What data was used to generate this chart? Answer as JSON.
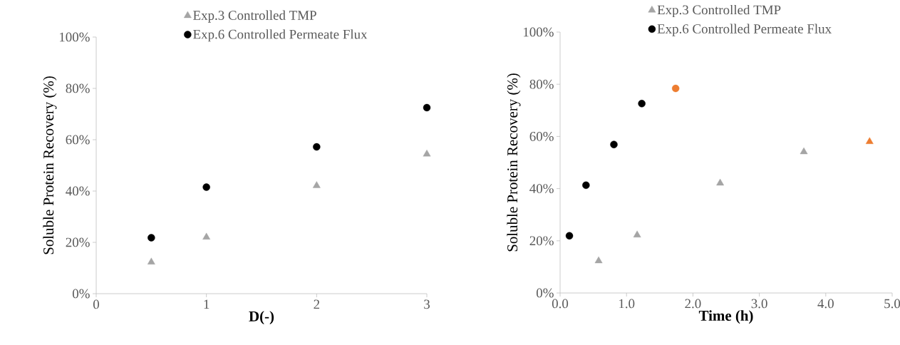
{
  "chart_data": [
    {
      "type": "scatter",
      "xlabel": "D(-)",
      "ylabel": "Soluble Protein Recovery (%)",
      "xlim": [
        0,
        3
      ],
      "xticks": [
        0,
        1,
        2,
        3
      ],
      "ylim": [
        0,
        100
      ],
      "yticks": [
        {
          "value": 0,
          "label": "0%"
        },
        {
          "value": 20,
          "label": "20%"
        },
        {
          "value": 40,
          "label": "40%"
        },
        {
          "value": 60,
          "label": "60%"
        },
        {
          "value": 80,
          "label": "80%"
        },
        {
          "value": 100,
          "label": "100%"
        }
      ],
      "legend": "top",
      "grid": false,
      "series": [
        {
          "name": "Exp.3 Controlled TMP",
          "color": "#a5a5a5",
          "marker": "triangle",
          "x": [
            0.5,
            1,
            2,
            3
          ],
          "values": [
            12.3,
            22,
            42.1,
            54.4
          ]
        },
        {
          "name": "Exp.6 Controlled Permeate Flux",
          "color": "#000000",
          "marker": "circle",
          "x": [
            0.5,
            1,
            2,
            3
          ],
          "values": [
            21.8,
            41.5,
            57.2,
            72.5
          ]
        }
      ]
    },
    {
      "type": "scatter",
      "xlabel": "Time (h)",
      "ylabel": "Soluble Protein Recovery (%)",
      "xlim": [
        0,
        5
      ],
      "xticks": [
        {
          "value": 0,
          "label": "0.0"
        },
        {
          "value": 1,
          "label": "1.0"
        },
        {
          "value": 2,
          "label": "2.0"
        },
        {
          "value": 3,
          "label": "3.0"
        },
        {
          "value": 4,
          "label": "4.0"
        },
        {
          "value": 5,
          "label": "5.0"
        }
      ],
      "ylim": [
        0,
        100
      ],
      "yticks": [
        {
          "value": 0,
          "label": "0%"
        },
        {
          "value": 20,
          "label": "20%"
        },
        {
          "value": 40,
          "label": "40%"
        },
        {
          "value": 60,
          "label": "60%"
        },
        {
          "value": 80,
          "label": "80%"
        },
        {
          "value": 100,
          "label": "100%"
        }
      ],
      "legend": "top",
      "grid": false,
      "series": [
        {
          "name": "Exp.3 Controlled TMP",
          "color": "#a5a5a5",
          "marker": "triangle",
          "x": [
            0.58,
            1.16,
            2.41,
            3.67,
            4.66
          ],
          "values": [
            12.3,
            22.2,
            42.1,
            54.1,
            58.0
          ],
          "colors": [
            "#a5a5a5",
            "#a5a5a5",
            "#a5a5a5",
            "#a5a5a5",
            "#ed7d31"
          ]
        },
        {
          "name": "Exp.6 Controlled Permeate Flux",
          "color": "#000000",
          "marker": "circle",
          "x": [
            0.14,
            0.39,
            0.81,
            1.23,
            1.74
          ],
          "values": [
            21.9,
            41.3,
            56.9,
            72.6,
            78.4
          ],
          "colors": [
            "#000000",
            "#000000",
            "#000000",
            "#000000",
            "#ed7d31"
          ]
        }
      ]
    }
  ]
}
